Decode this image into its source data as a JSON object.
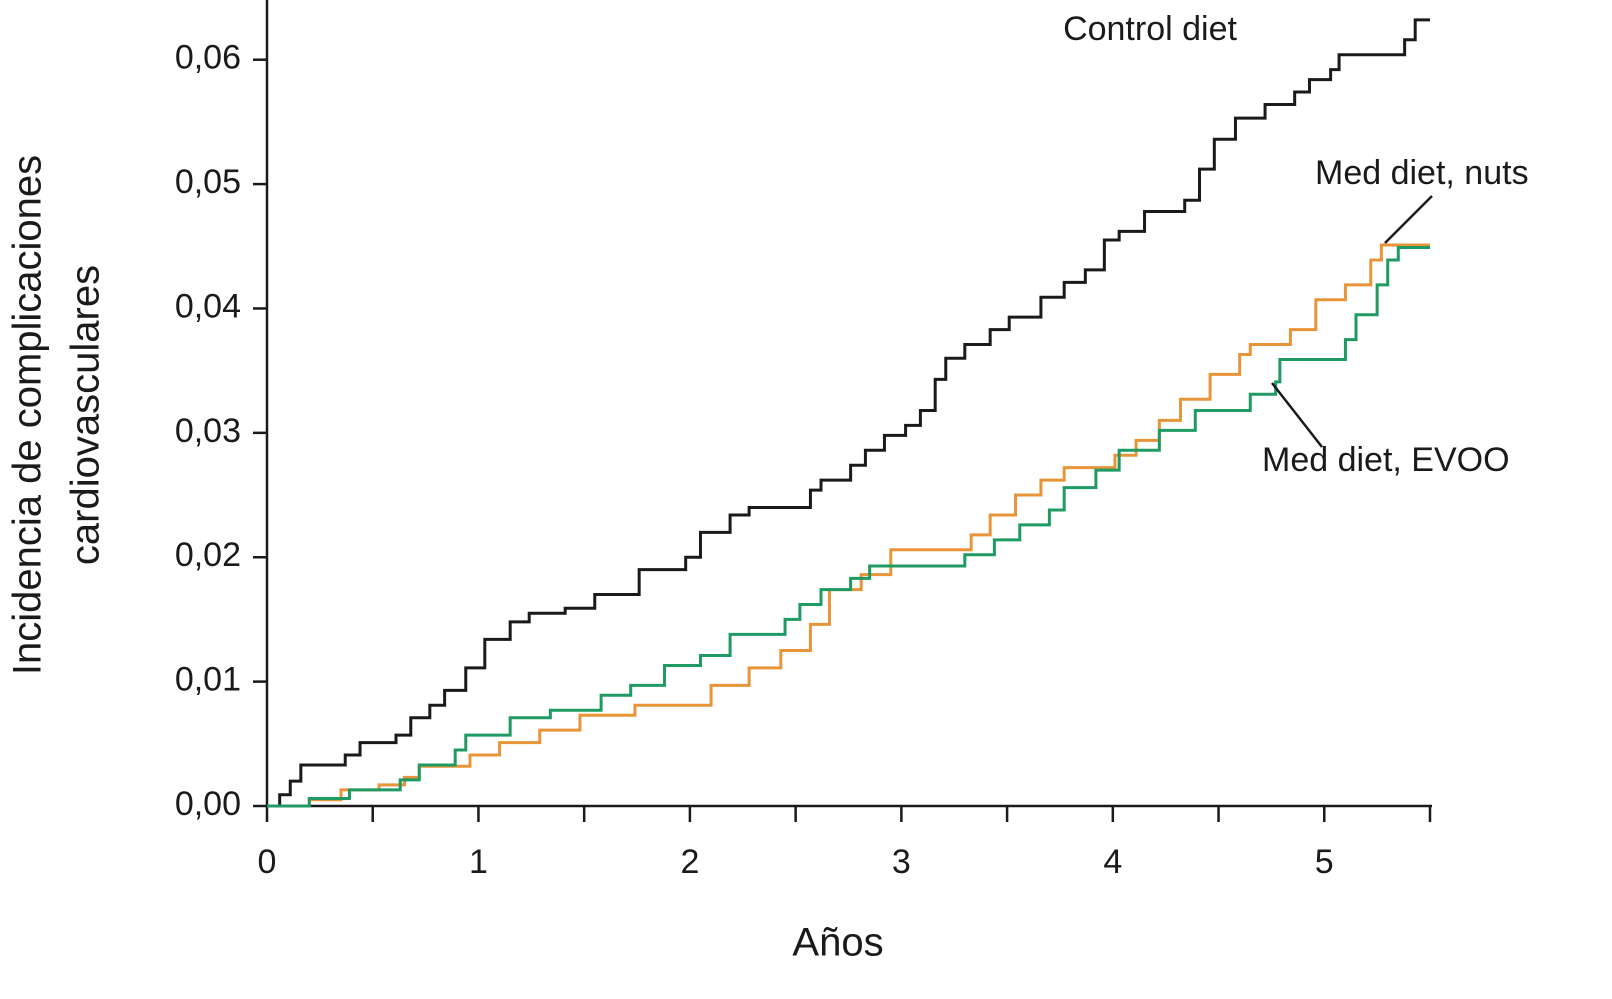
{
  "chart_data": {
    "type": "step",
    "x_label": "Años",
    "y_label": [
      "Incidencia de complicaciones",
      "cardiovasculares"
    ],
    "xlim": [
      0,
      5.5
    ],
    "ylim": [
      0,
      0.0648
    ],
    "xticks": [
      0,
      {
        "value": 0.5,
        "label": null
      },
      1,
      {
        "value": 1.5,
        "label": null
      },
      2,
      {
        "value": 2.5,
        "label": null
      },
      3,
      {
        "value": 3.5,
        "label": null
      },
      4,
      {
        "value": 4.5,
        "label": null
      },
      5,
      {
        "value": 5.5,
        "label": null
      }
    ],
    "yticks": [
      {
        "value": 0,
        "label": "0,00"
      },
      {
        "value": 0.01,
        "label": "0,01"
      },
      {
        "value": 0.02,
        "label": "0,02"
      },
      {
        "value": 0.03,
        "label": "0,03"
      },
      {
        "value": 0.04,
        "label": "0,04"
      },
      {
        "value": 0.05,
        "label": "0,05"
      },
      {
        "value": 0.06,
        "label": "0,06"
      }
    ],
    "series": [
      {
        "name": "Control diet",
        "color": "#1a1a1a",
        "x": [
          0,
          0.06,
          0.11,
          0.16,
          0.37,
          0.44,
          0.61,
          0.68,
          0.77,
          0.84,
          0.94,
          1.03,
          1.15,
          1.24,
          1.41,
          1.55,
          1.76,
          1.98,
          2.05,
          2.19,
          2.28,
          2.57,
          2.62,
          2.76,
          2.83,
          2.92,
          3.02,
          3.09,
          3.16,
          3.21,
          3.3,
          3.42,
          3.51,
          3.66,
          3.77,
          3.87,
          3.96,
          4.03,
          4.15,
          4.34,
          4.41,
          4.48,
          4.58,
          4.72,
          4.86,
          4.93,
          5.03,
          5.07,
          5.38,
          5.43,
          5.5
        ],
        "values": [
          0,
          0.0009,
          0.002,
          0.0033,
          0.0041,
          0.0051,
          0.0057,
          0.0071,
          0.0081,
          0.0093,
          0.0111,
          0.0134,
          0.0148,
          0.0155,
          0.0159,
          0.017,
          0.019,
          0.02,
          0.022,
          0.0234,
          0.024,
          0.0254,
          0.0262,
          0.0274,
          0.0286,
          0.0298,
          0.0306,
          0.0318,
          0.0343,
          0.036,
          0.0371,
          0.0383,
          0.0393,
          0.0409,
          0.0421,
          0.0431,
          0.0455,
          0.0462,
          0.0478,
          0.0487,
          0.0512,
          0.0536,
          0.0553,
          0.0564,
          0.0574,
          0.0584,
          0.0592,
          0.0604,
          0.0616,
          0.0632,
          0.0632
        ]
      },
      {
        "name": "Med diet, nuts",
        "color": "#e8953a",
        "x": [
          0,
          0.2,
          0.35,
          0.53,
          0.65,
          0.72,
          0.96,
          1.1,
          1.29,
          1.48,
          1.74,
          2.1,
          2.28,
          2.43,
          2.57,
          2.66,
          2.81,
          2.95,
          3.33,
          3.42,
          3.54,
          3.66,
          3.77,
          4.01,
          4.11,
          4.22,
          4.32,
          4.46,
          4.6,
          4.65,
          4.84,
          4.96,
          5.1,
          5.22,
          5.27,
          5.5
        ],
        "values": [
          0,
          0.0005,
          0.0013,
          0.0017,
          0.0023,
          0.0032,
          0.0041,
          0.0051,
          0.0061,
          0.0073,
          0.0081,
          0.0097,
          0.0111,
          0.0125,
          0.0146,
          0.0174,
          0.0186,
          0.0206,
          0.0218,
          0.0234,
          0.025,
          0.0262,
          0.0272,
          0.0282,
          0.0294,
          0.031,
          0.0327,
          0.0347,
          0.0363,
          0.0371,
          0.0383,
          0.0407,
          0.0419,
          0.0439,
          0.0451,
          0.0451
        ]
      },
      {
        "name": "Med diet, EVOO",
        "color": "#1f9a63",
        "x": [
          0,
          0.2,
          0.39,
          0.63,
          0.72,
          0.89,
          0.94,
          1.15,
          1.34,
          1.58,
          1.72,
          1.88,
          2.05,
          2.19,
          2.45,
          2.52,
          2.62,
          2.76,
          2.85,
          3.3,
          3.44,
          3.56,
          3.7,
          3.77,
          3.92,
          4.03,
          4.22,
          4.39,
          4.65,
          4.77,
          4.79,
          5.1,
          5.15,
          5.25,
          5.3,
          5.35,
          5.5
        ],
        "values": [
          0,
          0.0006,
          0.0013,
          0.0021,
          0.0033,
          0.0045,
          0.0057,
          0.0071,
          0.0077,
          0.0089,
          0.0097,
          0.0113,
          0.0121,
          0.0138,
          0.015,
          0.0162,
          0.0174,
          0.0183,
          0.0193,
          0.0202,
          0.0214,
          0.0226,
          0.0238,
          0.0256,
          0.027,
          0.0286,
          0.0302,
          0.0318,
          0.0331,
          0.0341,
          0.0359,
          0.0375,
          0.0395,
          0.0419,
          0.0439,
          0.0449,
          0.0449
        ]
      }
    ]
  }
}
